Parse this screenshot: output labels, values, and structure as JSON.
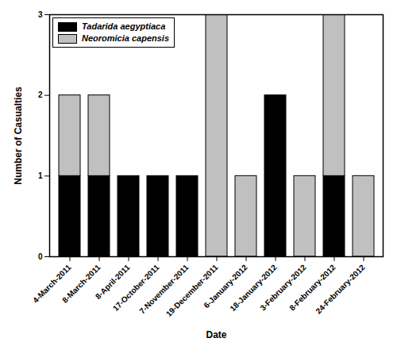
{
  "chart_data": {
    "type": "bar",
    "stacked": true,
    "x_label": "Date",
    "y_label": "Number of Casualties",
    "categories": [
      "4-March-2011",
      "8-March-2011",
      "8-April-2011",
      "17-October-2011",
      "7-November-2011",
      "19-December-2011",
      "6-January-2012",
      "18-January-2012",
      "3-February-2012",
      "8-February-2012",
      "24-February-2012"
    ],
    "series": [
      {
        "name": "Tadarida aegyptiaca",
        "color": "#000000",
        "values": [
          1,
          1,
          1,
          1,
          1,
          0,
          0,
          2,
          0,
          1,
          0
        ]
      },
      {
        "name": "Neoromicia capensis",
        "color": "#c0c0c0",
        "values": [
          1,
          1,
          0,
          0,
          0,
          3,
          1,
          0,
          1,
          2,
          1
        ]
      }
    ],
    "ylim": [
      0,
      3
    ],
    "yticks": [
      0,
      1,
      2,
      3
    ],
    "grid": false,
    "legend": "top-left"
  }
}
